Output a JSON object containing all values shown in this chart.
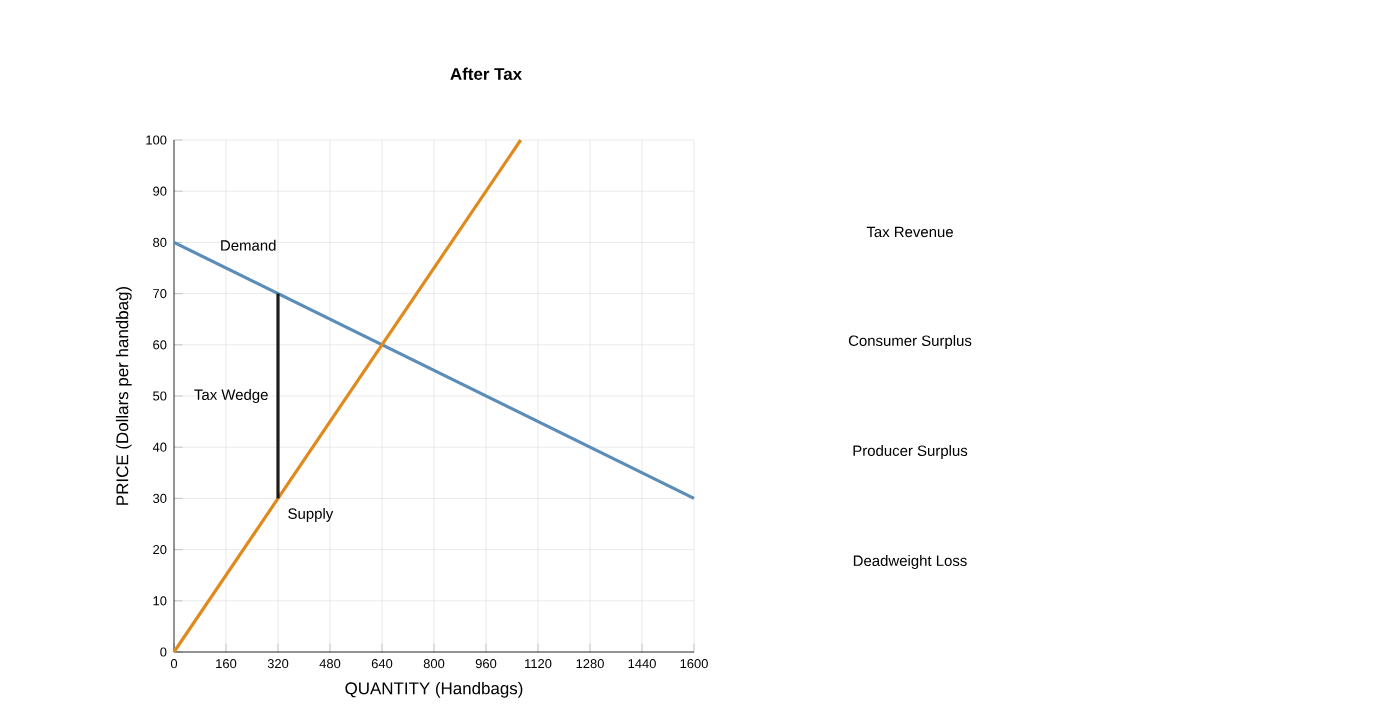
{
  "chart_data": {
    "type": "line",
    "title": "After Tax",
    "xlabel": "QUANTITY (Handbags)",
    "ylabel": "PRICE (Dollars per handbag)",
    "series": [
      {
        "name": "Demand",
        "color": "#5b8db8",
        "x": [
          0,
          1600
        ],
        "values": [
          80,
          30
        ]
      },
      {
        "name": "Supply",
        "color": "#e08a1e",
        "x": [
          0,
          1066.7
        ],
        "values": [
          0,
          100
        ]
      },
      {
        "name": "Tax Wedge",
        "color": "#1a1a1a",
        "x": [
          320,
          320
        ],
        "values": [
          30,
          70
        ]
      }
    ],
    "xlim": [
      0,
      1600
    ],
    "ylim": [
      0,
      100
    ],
    "xticks": [
      0,
      160,
      320,
      480,
      640,
      800,
      960,
      1120,
      1280,
      1440,
      1600
    ],
    "yticks": [
      0,
      10,
      20,
      30,
      40,
      50,
      60,
      70,
      80,
      90,
      100
    ],
    "grid": true,
    "legend": false,
    "marker": "none",
    "line_style": "solid",
    "annotations": [
      "Tax Revenue",
      "Consumer Surplus",
      "Producer Surplus",
      "Deadweight Loss"
    ]
  }
}
